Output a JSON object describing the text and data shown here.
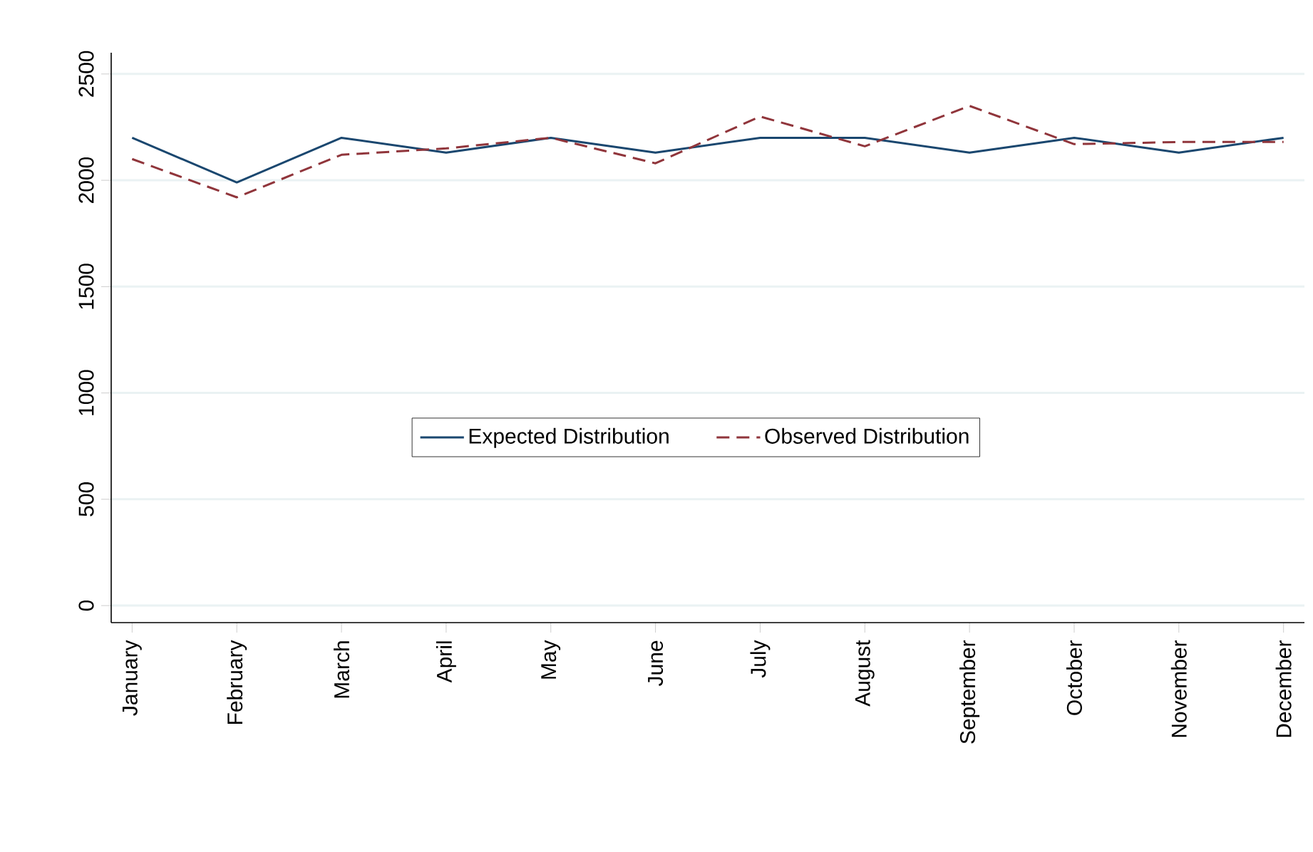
{
  "chart_data": {
    "type": "line",
    "categories": [
      "January",
      "February",
      "March",
      "April",
      "May",
      "June",
      "July",
      "August",
      "September",
      "October",
      "November",
      "December"
    ],
    "series": [
      {
        "name": "Expected Distribution",
        "color": "#1a476f",
        "line_style": "solid",
        "values": [
          2200,
          1990,
          2200,
          2130,
          2200,
          2130,
          2200,
          2200,
          2130,
          2200,
          2130,
          2200
        ]
      },
      {
        "name": "Observed Distribution",
        "color": "#90353b",
        "line_style": "dashed",
        "values": [
          2100,
          1920,
          2120,
          2150,
          2200,
          2080,
          2300,
          2160,
          2350,
          2170,
          2180,
          2180
        ]
      }
    ],
    "ylim": [
      -80,
      2600
    ],
    "yticks": [
      0,
      500,
      1000,
      1500,
      2000,
      2500
    ],
    "grid": "y",
    "legend": "center",
    "marker": "none"
  }
}
